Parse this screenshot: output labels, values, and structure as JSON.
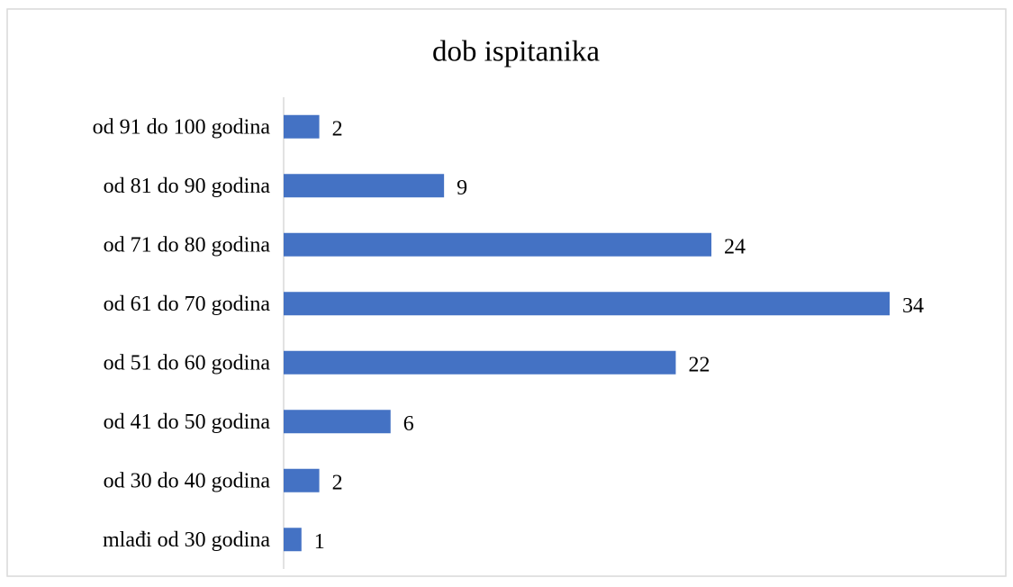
{
  "chart_data": {
    "type": "bar",
    "orientation": "horizontal",
    "title": "dob ispitanika",
    "categories": [
      "od 91 do 100 godina",
      "od 81 do 90 godina",
      "od 71 do 80 godina",
      "od 61 do 70 godina",
      "od 51 do 60 godina",
      "od 41 do 50 godina",
      "od 30 do 40 godina",
      "mlađi od 30 godina"
    ],
    "values": [
      2,
      9,
      24,
      34,
      22,
      6,
      2,
      1
    ],
    "color": "#4472c4"
  }
}
